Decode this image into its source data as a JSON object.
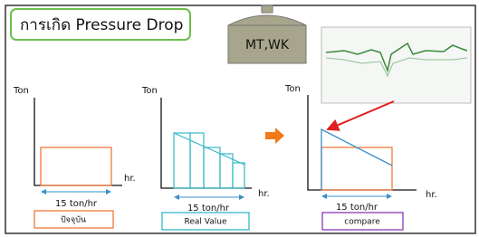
{
  "header": {
    "title": "การเกิด Pressure Drop"
  },
  "tank": {
    "label": "MT,WK"
  },
  "panels": [
    {
      "y_axis": "Ton",
      "x_axis": "hr.",
      "rate": "15 ton/hr",
      "caption": "ปัจจุบัน"
    },
    {
      "y_axis": "Ton",
      "x_axis": "hr.",
      "rate": "15 ton/hr",
      "caption": "Real Value"
    },
    {
      "y_axis": "Ton",
      "x_axis": "hr.",
      "rate": "15 ton/hr",
      "caption": "compare"
    }
  ]
}
